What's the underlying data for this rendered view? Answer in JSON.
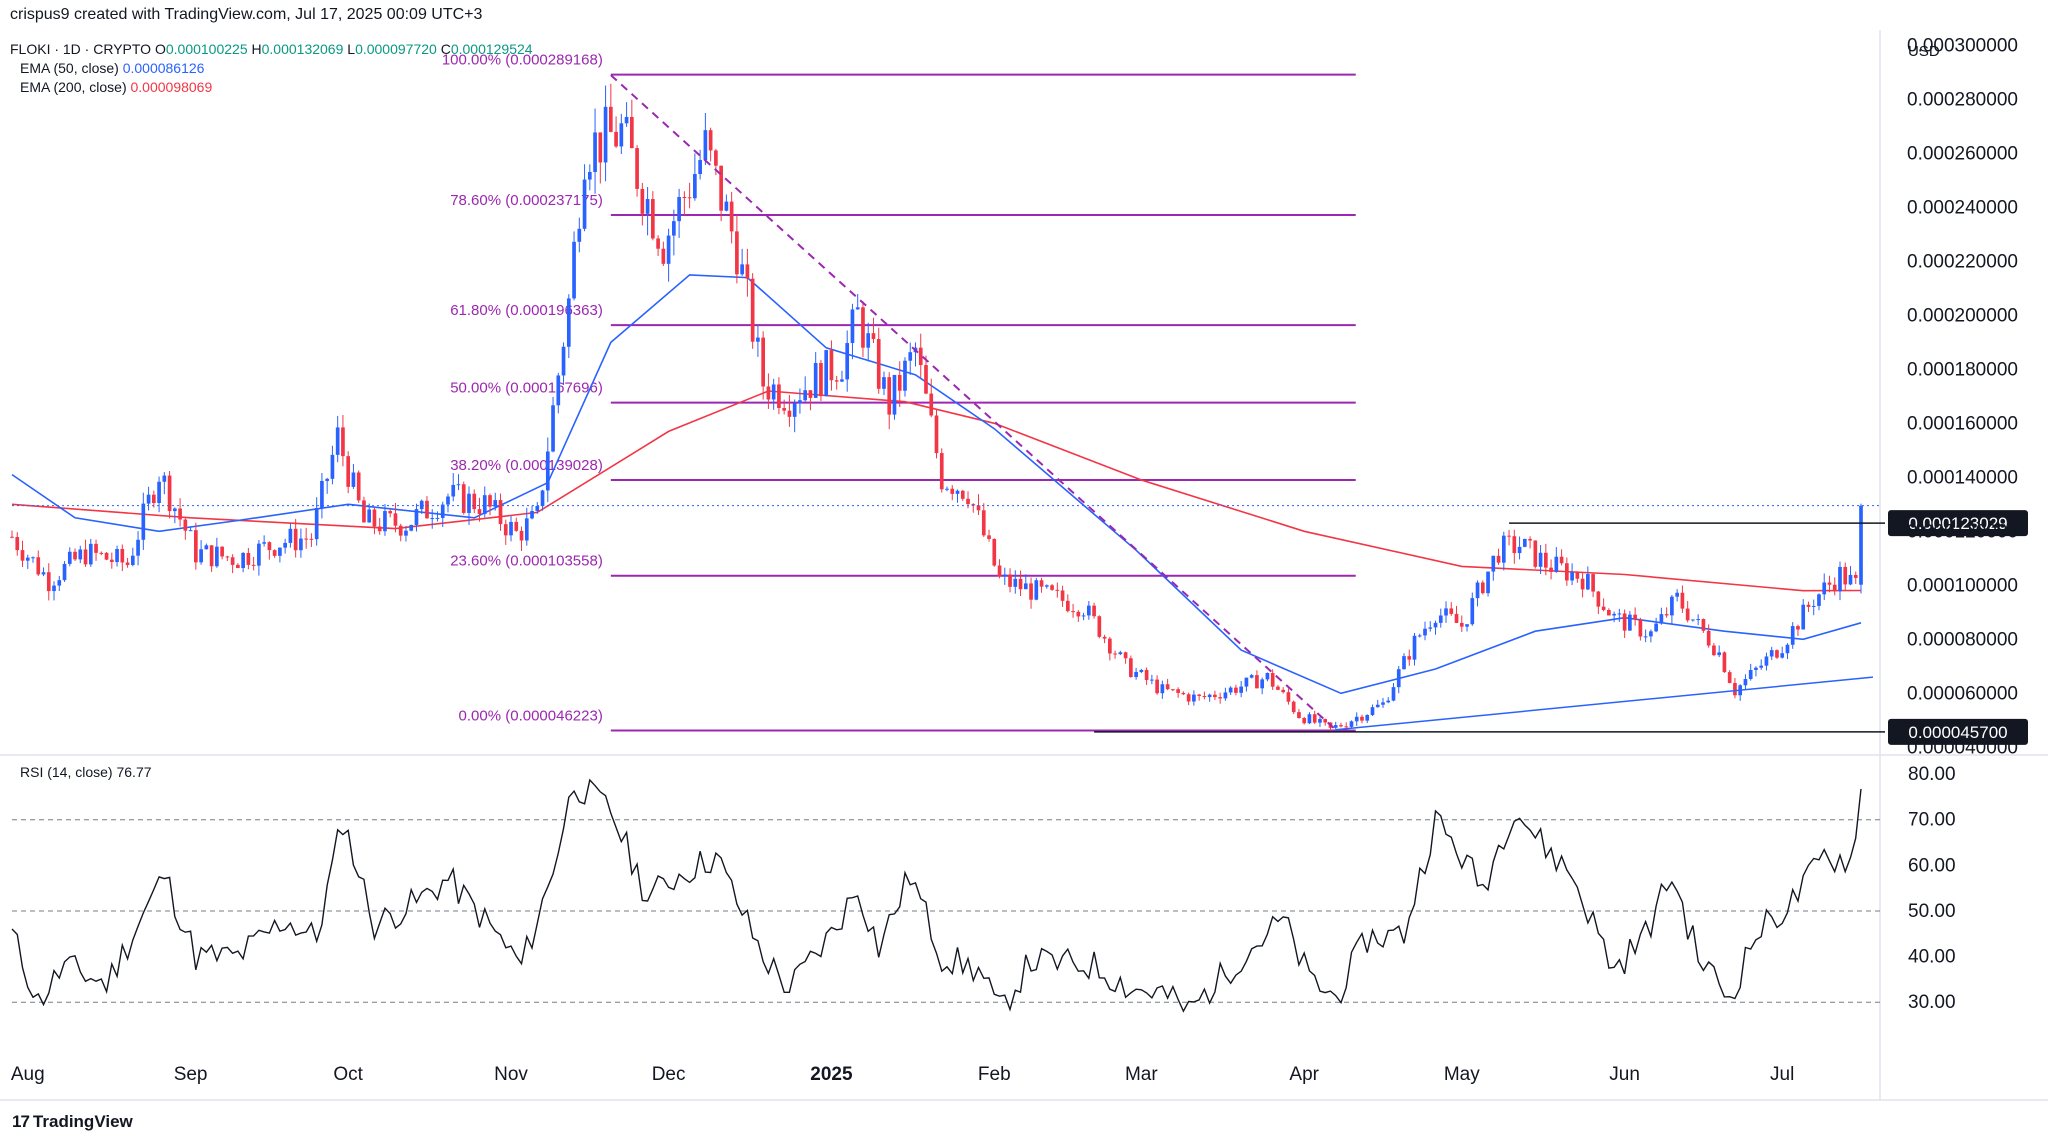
{
  "caption": "crispus9 created with TradingView.com, Jul 17, 2025 00:09 UTC+3",
  "brand": "TradingView",
  "colors": {
    "up": "#2962ff",
    "down": "#f23645",
    "ema50": "#2962ff",
    "ema200": "#f23645",
    "fib": "#9c27b0",
    "text": "#131722",
    "legend_value": "#089981",
    "grid": "#e0e3eb"
  },
  "legend": {
    "symbol": "FLOKI · 1D · CRYPTO",
    "ohlc": [
      {
        "label": "O",
        "value": "0.000100225"
      },
      {
        "label": "H",
        "value": "0.000132069"
      },
      {
        "label": "L",
        "value": "0.000097720"
      },
      {
        "label": "C",
        "value": "0.000129524"
      }
    ],
    "ema50": {
      "label": "EMA (50, close)",
      "value": "0.000086126"
    },
    "ema200": {
      "label": "EMA (200, close)",
      "value": "0.000098069"
    }
  },
  "rsi_legend": {
    "label": "RSI (14, close)",
    "value": "76.77"
  },
  "chart_data": [
    {
      "type": "candlestick",
      "currency": "USD",
      "x_ticks": [
        "Aug",
        "Sep",
        "Oct",
        "Nov",
        "Dec",
        "2025",
        "Feb",
        "Mar",
        "Apr",
        "May",
        "Jun",
        "Jul"
      ],
      "y_ticks": [
        "0.000040000",
        "0.000060000",
        "0.000080000",
        "0.000100000",
        "0.000120000",
        "0.000140000",
        "0.000160000",
        "0.000180000",
        "0.000200000",
        "0.000220000",
        "0.000240000",
        "0.000260000",
        "0.000280000",
        "0.000300000"
      ],
      "ylim": [
        3.9e-05,
        0.000302
      ],
      "price_path": [
        [
          "2024-07-29",
          0.000118
        ],
        [
          "2024-08-05",
          0.000102
        ],
        [
          "2024-08-12",
          0.000112
        ],
        [
          "2024-08-20",
          0.000108
        ],
        [
          "2024-08-26",
          0.000142
        ],
        [
          "2024-09-02",
          0.000112
        ],
        [
          "2024-09-10",
          0.00011
        ],
        [
          "2024-09-18",
          0.000116
        ],
        [
          "2024-09-24",
          0.000118
        ],
        [
          "2024-09-29",
          0.000155
        ],
        [
          "2024-10-04",
          0.000123
        ],
        [
          "2024-10-12",
          0.000123
        ],
        [
          "2024-10-20",
          0.000133
        ],
        [
          "2024-10-27",
          0.00013
        ],
        [
          "2024-11-02",
          0.000119
        ],
        [
          "2024-11-06",
          0.000125
        ],
        [
          "2024-11-12",
          0.000205
        ],
        [
          "2024-11-15",
          0.000262
        ],
        [
          "2024-11-22",
          0.000268
        ],
        [
          "2024-11-30",
          0.000227
        ],
        [
          "2024-12-08",
          0.000262
        ],
        [
          "2024-12-14",
          0.000225
        ],
        [
          "2024-12-19",
          0.000175
        ],
        [
          "2024-12-24",
          0.00017
        ],
        [
          "2025-01-03",
          0.000183
        ],
        [
          "2025-01-06",
          0.0002
        ],
        [
          "2025-01-12",
          0.000167
        ],
        [
          "2025-01-17",
          0.000187
        ],
        [
          "2025-01-22",
          0.00014
        ],
        [
          "2025-01-27",
          0.000135
        ],
        [
          "2025-02-02",
          0.000102
        ],
        [
          "2025-02-10",
          9.7e-05
        ],
        [
          "2025-02-18",
          9.2e-05
        ],
        [
          "2025-02-26",
          7e-05
        ],
        [
          "2025-03-05",
          6.1e-05
        ],
        [
          "2025-03-12",
          5.8e-05
        ],
        [
          "2025-03-19",
          6.2e-05
        ],
        [
          "2025-03-25",
          6.6e-05
        ],
        [
          "2025-03-31",
          5.2e-05
        ],
        [
          "2025-04-06",
          4.65e-05
        ],
        [
          "2025-04-16",
          5.6e-05
        ],
        [
          "2025-04-22",
          7.9e-05
        ],
        [
          "2025-04-26",
          9e-05
        ],
        [
          "2025-05-01",
          8.5e-05
        ],
        [
          "2025-05-08",
          0.000113
        ],
        [
          "2025-05-12",
          0.000115
        ],
        [
          "2025-05-17",
          0.000108
        ],
        [
          "2025-05-24",
          0.000103
        ],
        [
          "2025-05-30",
          8.8e-05
        ],
        [
          "2025-06-06",
          8.2e-05
        ],
        [
          "2025-06-11",
          9.5e-05
        ],
        [
          "2025-06-19",
          7.5e-05
        ],
        [
          "2025-06-22",
          6.1e-05
        ],
        [
          "2025-07-01",
          7.8e-05
        ],
        [
          "2025-07-07",
          9.5e-05
        ],
        [
          "2025-07-12",
          0.000104
        ],
        [
          "2025-07-15",
          0.0001
        ],
        [
          "2025-07-16",
          0.0001295
        ]
      ],
      "ema50": [
        [
          "2024-07-29",
          0.000141
        ],
        [
          "2024-08-10",
          0.000125
        ],
        [
          "2024-08-26",
          0.00012
        ],
        [
          "2024-09-10",
          0.000124
        ],
        [
          "2024-10-01",
          0.00013
        ],
        [
          "2024-10-25",
          0.000125
        ],
        [
          "2024-11-08",
          0.000138
        ],
        [
          "2024-11-20",
          0.00019
        ],
        [
          "2024-12-05",
          0.000215
        ],
        [
          "2024-12-16",
          0.000214
        ],
        [
          "2024-12-31",
          0.000188
        ],
        [
          "2025-01-17",
          0.000178
        ],
        [
          "2025-02-01",
          0.000158
        ],
        [
          "2025-02-28",
          0.000113
        ],
        [
          "2025-03-20",
          7.6e-05
        ],
        [
          "2025-04-08",
          6e-05
        ],
        [
          "2025-04-26",
          6.9e-05
        ],
        [
          "2025-05-15",
          8.3e-05
        ],
        [
          "2025-06-01",
          8.8e-05
        ],
        [
          "2025-06-20",
          8.3e-05
        ],
        [
          "2025-07-05",
          8e-05
        ],
        [
          "2025-07-16",
          8.6126e-05
        ]
      ],
      "ema200": [
        [
          "2024-07-29",
          0.00013
        ],
        [
          "2024-09-01",
          0.000125
        ],
        [
          "2024-10-10",
          0.000121
        ],
        [
          "2024-11-06",
          0.000127
        ],
        [
          "2024-12-01",
          0.000157
        ],
        [
          "2024-12-20",
          0.000172
        ],
        [
          "2025-01-15",
          0.000168
        ],
        [
          "2025-02-01",
          0.00016
        ],
        [
          "2025-03-01",
          0.000139
        ],
        [
          "2025-04-01",
          0.00012
        ],
        [
          "2025-05-01",
          0.000107
        ],
        [
          "2025-06-01",
          0.000104
        ],
        [
          "2025-07-05",
          9.8e-05
        ],
        [
          "2025-07-16",
          9.8069e-05
        ]
      ],
      "fibonacci": [
        {
          "label": "100.00% (0.000289168)",
          "value": 0.000289168
        },
        {
          "label": "78.60% (0.000237175)",
          "value": 0.000237175
        },
        {
          "label": "61.80% (0.000196363)",
          "value": 0.000196363
        },
        {
          "label": "50.00% (0.000167696)",
          "value": 0.000167696
        },
        {
          "label": "38.20% (0.000139028)",
          "value": 0.000139028
        },
        {
          "label": "23.60% (0.000103558)",
          "value": 0.000103558
        },
        {
          "label": "0.00% (0.000046223)",
          "value": 4.6223e-05
        }
      ],
      "fib_range": [
        "2024-11-20",
        "2025-04-07"
      ],
      "horizontal_levels": [
        {
          "label": "0.000123029",
          "value": 0.000123029,
          "from": "2025-05-10"
        },
        {
          "label": "0.000045700",
          "value": 4.57e-05,
          "from": "2025-02-20"
        }
      ],
      "trendline": [
        [
          "2025-04-07",
          4.65e-05
        ],
        [
          "2025-07-16",
          6.6e-05
        ]
      ],
      "downtrend_line": [
        [
          "2024-11-20",
          0.000289
        ],
        [
          "2025-04-07",
          4.65e-05
        ]
      ],
      "last_price": 0.0001295
    },
    {
      "type": "line",
      "name": "RSI (14, close)",
      "y_ticks": [
        "30.00",
        "40.00",
        "50.00",
        "60.00",
        "70.00",
        "80.00"
      ],
      "ylim": [
        25,
        82
      ],
      "levels": [
        30,
        50,
        70
      ],
      "values": [
        [
          "2024-07-29",
          45
        ],
        [
          "2024-08-03",
          30
        ],
        [
          "2024-08-08",
          38
        ],
        [
          "2024-08-16",
          34
        ],
        [
          "2024-08-27",
          58
        ],
        [
          "2024-09-02",
          40
        ],
        [
          "2024-09-10",
          40
        ],
        [
          "2024-09-19",
          48
        ],
        [
          "2024-09-25",
          44
        ],
        [
          "2024-09-30",
          70
        ],
        [
          "2024-10-06",
          47
        ],
        [
          "2024-10-14",
          52
        ],
        [
          "2024-10-20",
          57
        ],
        [
          "2024-10-27",
          48
        ],
        [
          "2024-11-03",
          38
        ],
        [
          "2024-11-08",
          55
        ],
        [
          "2024-11-13",
          78
        ],
        [
          "2024-11-20",
          72
        ],
        [
          "2024-11-27",
          53
        ],
        [
          "2024-12-03",
          58
        ],
        [
          "2024-12-10",
          62
        ],
        [
          "2024-12-19",
          40
        ],
        [
          "2024-12-24",
          33
        ],
        [
          "2025-01-01",
          45
        ],
        [
          "2025-01-06",
          55
        ],
        [
          "2025-01-10",
          42
        ],
        [
          "2025-01-16",
          58
        ],
        [
          "2025-01-22",
          40
        ],
        [
          "2025-01-29",
          37
        ],
        [
          "2025-02-02",
          28
        ],
        [
          "2025-02-08",
          39
        ],
        [
          "2025-02-20",
          38
        ],
        [
          "2025-02-27",
          33
        ],
        [
          "2025-03-05",
          32
        ],
        [
          "2025-03-10",
          28
        ],
        [
          "2025-03-20",
          40
        ],
        [
          "2025-03-28",
          48
        ],
        [
          "2025-04-02",
          35
        ],
        [
          "2025-04-07",
          31
        ],
        [
          "2025-04-13",
          44
        ],
        [
          "2025-04-20",
          45
        ],
        [
          "2025-04-26",
          70
        ],
        [
          "2025-05-01",
          62
        ],
        [
          "2025-05-05",
          55
        ],
        [
          "2025-05-11",
          73
        ],
        [
          "2025-05-16",
          65
        ],
        [
          "2025-05-22",
          58
        ],
        [
          "2025-05-30",
          37
        ],
        [
          "2025-06-05",
          45
        ],
        [
          "2025-06-10",
          58
        ],
        [
          "2025-06-15",
          40
        ],
        [
          "2025-06-21",
          31
        ],
        [
          "2025-06-26",
          45
        ],
        [
          "2025-07-03",
          52
        ],
        [
          "2025-07-09",
          62
        ],
        [
          "2025-07-14",
          61
        ],
        [
          "2025-07-16",
          76.77
        ]
      ]
    }
  ]
}
